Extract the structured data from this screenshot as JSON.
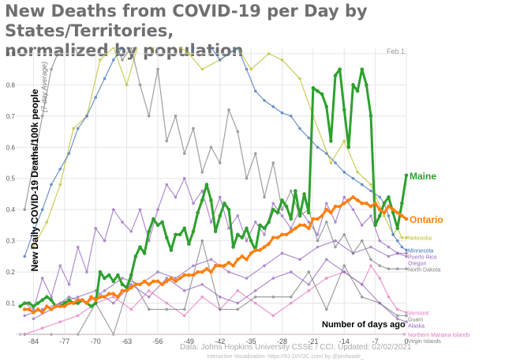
{
  "title": {
    "line1": "New Deaths from COVID-19 per Day by States/Territories,",
    "line2": "normalized by population"
  },
  "chart_data": {
    "type": "line",
    "ylabel": "New Daily COVID-19 Deaths/100k people",
    "ylabel_note": "(7-day Average)",
    "xlabel": "Number of days ago",
    "date_note": "Feb 1",
    "source": "Data: Johns Hopkins University CSSE / CCI; Updated: 02/02/2021",
    "credit": "Interactive Visualization: https://91-DIVOC.com/ by @profwade_",
    "xlim": [
      -88,
      0
    ],
    "ylim": [
      0,
      0.92
    ],
    "xticks": [
      -84,
      -77,
      -70,
      -63,
      -56,
      -49,
      -42,
      -35,
      -28,
      -21,
      -14,
      -7,
      0
    ],
    "yticks": [
      0.1,
      0.2,
      0.3,
      0.4,
      0.5,
      0.6,
      0.7,
      0.8,
      0.9
    ],
    "grid": true,
    "highlighted": [
      {
        "name": "Maine",
        "color": "#2ea02e",
        "x": [
          -87,
          -86,
          -85,
          -84,
          -83,
          -82,
          -81,
          -80,
          -79,
          -78,
          -77,
          -76,
          -75,
          -74,
          -73,
          -72,
          -71,
          -70,
          -69,
          -68,
          -67,
          -66,
          -65,
          -64,
          -63,
          -62,
          -61,
          -60,
          -59,
          -58,
          -57,
          -56,
          -55,
          -54,
          -53,
          -52,
          -51,
          -50,
          -49,
          -48,
          -47,
          -46,
          -45,
          -44,
          -43,
          -42,
          -41,
          -40,
          -39,
          -38,
          -37,
          -36,
          -35,
          -34,
          -33,
          -32,
          -31,
          -30,
          -29,
          -28,
          -27,
          -26,
          -25,
          -24,
          -23,
          -22,
          -21,
          -20,
          -19,
          -18,
          -17,
          -16,
          -15,
          -14,
          -13,
          -12,
          -11,
          -10,
          -9,
          -8,
          -7,
          -6,
          -5,
          -4,
          -3,
          -2,
          -1,
          0
        ],
        "y": [
          0.09,
          0.1,
          0.1,
          0.09,
          0.1,
          0.11,
          0.12,
          0.11,
          0.09,
          0.09,
          0.1,
          0.11,
          0.1,
          0.1,
          0.11,
          0.1,
          0.09,
          0.1,
          0.2,
          0.18,
          0.19,
          0.17,
          0.19,
          0.16,
          0.15,
          0.19,
          0.25,
          0.28,
          0.26,
          0.33,
          0.37,
          0.35,
          0.36,
          0.31,
          0.27,
          0.32,
          0.32,
          0.34,
          0.29,
          0.33,
          0.39,
          0.43,
          0.48,
          0.43,
          0.33,
          0.38,
          0.42,
          0.4,
          0.28,
          0.32,
          0.31,
          0.34,
          0.3,
          0.27,
          0.35,
          0.34,
          0.36,
          0.4,
          0.39,
          0.43,
          0.41,
          0.37,
          0.46,
          0.38,
          0.45,
          0.39,
          0.79,
          0.78,
          0.77,
          0.73,
          0.62,
          0.83,
          0.85,
          0.72,
          0.6,
          0.8,
          0.78,
          0.85,
          0.8,
          0.7,
          0.35,
          0.38,
          0.42,
          0.44,
          0.39,
          0.34,
          0.42,
          0.51
        ]
      },
      {
        "name": "Ontario",
        "color": "#ff7f0e",
        "x": [
          -86,
          -85,
          -84,
          -83,
          -82,
          -81,
          -80,
          -79,
          -78,
          -77,
          -76,
          -75,
          -74,
          -73,
          -72,
          -71,
          -70,
          -69,
          -68,
          -67,
          -66,
          -65,
          -64,
          -63,
          -62,
          -61,
          -60,
          -59,
          -58,
          -57,
          -56,
          -55,
          -54,
          -53,
          -52,
          -51,
          -50,
          -49,
          -48,
          -47,
          -46,
          -45,
          -44,
          -43,
          -42,
          -41,
          -40,
          -39,
          -38,
          -37,
          -36,
          -35,
          -34,
          -33,
          -32,
          -31,
          -30,
          -29,
          -28,
          -27,
          -26,
          -25,
          -24,
          -23,
          -22,
          -21,
          -20,
          -19,
          -18,
          -17,
          -16,
          -15,
          -14,
          -13,
          -12,
          -11,
          -10,
          -9,
          -8,
          -7,
          -6,
          -5,
          -4,
          -3,
          -2,
          -1,
          0
        ],
        "y": [
          0.08,
          0.08,
          0.07,
          0.08,
          0.07,
          0.09,
          0.08,
          0.09,
          0.09,
          0.09,
          0.1,
          0.1,
          0.11,
          0.11,
          0.1,
          0.12,
          0.11,
          0.12,
          0.12,
          0.13,
          0.13,
          0.12,
          0.14,
          0.14,
          0.15,
          0.16,
          0.16,
          0.17,
          0.16,
          0.17,
          0.17,
          0.16,
          0.17,
          0.18,
          0.17,
          0.18,
          0.19,
          0.19,
          0.19,
          0.2,
          0.2,
          0.21,
          0.2,
          0.22,
          0.22,
          0.22,
          0.23,
          0.22,
          0.24,
          0.25,
          0.24,
          0.26,
          0.27,
          0.27,
          0.28,
          0.29,
          0.31,
          0.31,
          0.32,
          0.32,
          0.33,
          0.34,
          0.35,
          0.35,
          0.34,
          0.37,
          0.37,
          0.38,
          0.4,
          0.39,
          0.41,
          0.41,
          0.42,
          0.43,
          0.44,
          0.43,
          0.42,
          0.42,
          0.41,
          0.42,
          0.4,
          0.39,
          0.41,
          0.4,
          0.39,
          0.38,
          0.37
        ]
      }
    ],
    "background_series": [
      {
        "name": "Nebraska",
        "color": "#bcbd22",
        "x": [
          -84,
          -81,
          -78,
          -75,
          -72,
          -69,
          -66,
          -63,
          -60,
          -57,
          -54,
          -51,
          -49,
          -46,
          -42,
          -38,
          -35,
          -31,
          -28,
          -24,
          -21,
          -17,
          -14,
          -11,
          -8,
          -5,
          -3,
          -2,
          -1,
          0
        ],
        "y": [
          0.28,
          0.36,
          0.48,
          0.66,
          0.7,
          0.88,
          0.92,
          0.8,
          0.95,
          0.92,
          0.95,
          0.92,
          0.9,
          0.85,
          0.88,
          0.92,
          0.85,
          0.9,
          0.88,
          0.82,
          0.7,
          0.55,
          0.62,
          0.52,
          0.48,
          0.38,
          0.32,
          0.34,
          0.31,
          0.31
        ]
      },
      {
        "name": "Minnesota",
        "color": "#3b6fb6",
        "x": [
          -86,
          -84,
          -82,
          -80,
          -78,
          -76,
          -74,
          -72,
          -70,
          -68,
          -66,
          -64,
          -62,
          -60,
          -58,
          -56,
          -54,
          -52,
          -50,
          -48,
          -46,
          -44,
          -42,
          -40,
          -38,
          -36,
          -34,
          -32,
          -30,
          -28,
          -26,
          -24,
          -22,
          -20,
          -18,
          -16,
          -14,
          -12,
          -10,
          -8,
          -6,
          -5,
          -4,
          -3,
          -2,
          -1,
          0
        ],
        "y": [
          0.25,
          0.33,
          0.4,
          0.48,
          0.53,
          0.58,
          0.66,
          0.7,
          0.76,
          0.82,
          0.88,
          0.92,
          0.95,
          0.96,
          0.95,
          0.92,
          0.94,
          0.95,
          0.96,
          0.92,
          0.95,
          0.92,
          0.88,
          0.9,
          0.92,
          0.85,
          0.78,
          0.75,
          0.73,
          0.71,
          0.7,
          0.66,
          0.63,
          0.6,
          0.58,
          0.55,
          0.52,
          0.5,
          0.48,
          0.46,
          0.44,
          0.42,
          0.38,
          0.32,
          0.3,
          0.28,
          0.27
        ]
      },
      {
        "name": "Puerto Rico",
        "color": "#9467bd",
        "x": [
          -86,
          -84,
          -82,
          -80,
          -78,
          -76,
          -74,
          -72,
          -70,
          -68,
          -66,
          -64,
          -62,
          -60,
          -58,
          -56,
          -54,
          -52,
          -50,
          -48,
          -46,
          -44,
          -42,
          -40,
          -38,
          -36,
          -34,
          -32,
          -30,
          -28,
          -26,
          -24,
          -22,
          -20,
          -18,
          -16,
          -14,
          -12,
          -10,
          -8,
          -6,
          -4,
          -2,
          0
        ],
        "y": [
          0.1,
          0.08,
          0.18,
          0.12,
          0.22,
          0.16,
          0.28,
          0.2,
          0.34,
          0.3,
          0.4,
          0.36,
          0.33,
          0.4,
          0.3,
          0.4,
          0.48,
          0.44,
          0.5,
          0.42,
          0.46,
          0.36,
          0.44,
          0.34,
          0.38,
          0.3,
          0.36,
          0.32,
          0.42,
          0.38,
          0.34,
          0.4,
          0.36,
          0.32,
          0.42,
          0.36,
          0.44,
          0.4,
          0.35,
          0.38,
          0.3,
          0.28,
          0.26,
          0.26
        ]
      },
      {
        "name": "Oregon",
        "color": "#9467bd",
        "x": [
          -84,
          -80,
          -76,
          -72,
          -68,
          -64,
          -60,
          -56,
          -52,
          -48,
          -44,
          -40,
          -36,
          -32,
          -28,
          -24,
          -20,
          -16,
          -12,
          -8,
          -4,
          -2,
          0
        ],
        "y": [
          0.05,
          0.08,
          0.12,
          0.1,
          0.14,
          0.18,
          0.16,
          0.2,
          0.18,
          0.22,
          0.24,
          0.2,
          0.18,
          0.22,
          0.26,
          0.24,
          0.28,
          0.3,
          0.26,
          0.28,
          0.25,
          0.26,
          0.25
        ]
      },
      {
        "name": "North Dakota",
        "color": "#7f7f7f",
        "x": [
          -86,
          -84,
          -82,
          -80,
          -78,
          -76,
          -74,
          -72,
          -70,
          -68,
          -66,
          -64,
          -62,
          -60,
          -58,
          -56,
          -54,
          -52,
          -50,
          -48,
          -46,
          -44,
          -42,
          -40,
          -38,
          -36,
          -34,
          -32,
          -30,
          -28,
          -26,
          -24,
          -22,
          -20,
          -18,
          -16,
          -14,
          -12,
          -10,
          -8,
          -6,
          -4,
          -2,
          0
        ],
        "y": [
          0.4,
          0.55,
          0.7,
          0.85,
          0.92,
          0.95,
          0.9,
          0.94,
          0.95,
          0.92,
          0.95,
          0.88,
          0.92,
          0.8,
          0.7,
          0.85,
          0.62,
          0.7,
          0.58,
          0.66,
          0.52,
          0.6,
          0.55,
          0.72,
          0.65,
          0.5,
          0.58,
          0.44,
          0.55,
          0.4,
          0.46,
          0.38,
          0.4,
          0.3,
          0.36,
          0.28,
          0.32,
          0.26,
          0.3,
          0.24,
          0.22,
          0.21,
          0.21,
          0.21
        ]
      },
      {
        "name": "Vermont",
        "color": "#e377c2",
        "x": [
          -86,
          -82,
          -78,
          -74,
          -70,
          -66,
          -62,
          -58,
          -54,
          -50,
          -46,
          -42,
          -38,
          -34,
          -30,
          -26,
          -22,
          -18,
          -14,
          -10,
          -8,
          -6,
          -4,
          -2,
          0
        ],
        "y": [
          0.0,
          0.02,
          0.04,
          0.06,
          0.1,
          0.12,
          0.08,
          0.14,
          0.1,
          0.06,
          0.12,
          0.08,
          0.14,
          0.1,
          0.06,
          0.1,
          0.14,
          0.18,
          0.2,
          0.16,
          0.22,
          0.18,
          0.12,
          0.08,
          0.07
        ]
      },
      {
        "name": "Guam",
        "color": "#7f7f7f",
        "x": [
          -86,
          -80,
          -74,
          -70,
          -66,
          -62,
          -58,
          -54,
          -50,
          -46,
          -42,
          -38,
          -34,
          -30,
          -26,
          -22,
          -18,
          -14,
          -10,
          -6,
          -2,
          0
        ],
        "y": [
          0.0,
          0.0,
          0.0,
          0.1,
          0.0,
          0.18,
          0.08,
          0.08,
          0.08,
          0.3,
          0.08,
          0.08,
          0.12,
          0.12,
          0.12,
          0.2,
          0.08,
          0.22,
          0.12,
          0.1,
          0.06,
          0.06
        ]
      },
      {
        "name": "Alaska",
        "color": "#9467bd",
        "x": [
          -86,
          -82,
          -78,
          -74,
          -70,
          -66,
          -62,
          -58,
          -54,
          -50,
          -46,
          -42,
          -38,
          -34,
          -30,
          -26,
          -22,
          -18,
          -14,
          -10,
          -6,
          -2,
          0
        ],
        "y": [
          0.06,
          0.08,
          0.1,
          0.12,
          0.14,
          0.1,
          0.16,
          0.12,
          0.18,
          0.14,
          0.16,
          0.12,
          0.1,
          0.14,
          0.18,
          0.2,
          0.16,
          0.24,
          0.2,
          0.16,
          0.1,
          0.05,
          0.04
        ]
      },
      {
        "name": "Northern Mariana Islands",
        "color": "#e377c2",
        "x": [
          -87,
          -0.5
        ],
        "y": [
          0.0,
          0.0
        ]
      },
      {
        "name": "Virgin Islands",
        "color": "#7f7f7f",
        "x": [
          -87,
          -0.5
        ],
        "y": [
          -0.02,
          -0.02
        ]
      }
    ]
  }
}
